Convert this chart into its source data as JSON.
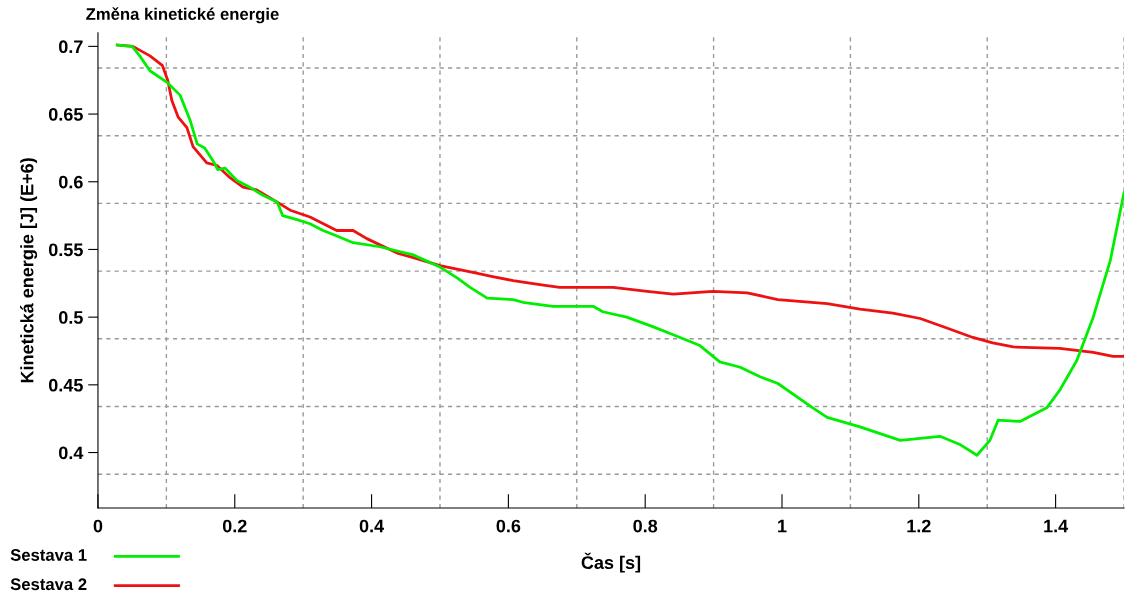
{
  "chart_data": {
    "type": "line",
    "title": "Změna kinetické energie",
    "xlabel": "Čas [s]",
    "ylabel": "Kinetická energie [J] (E+6)",
    "xlim": [
      0,
      1.5
    ],
    "ylim": [
      0.359,
      0.71
    ],
    "xticks": [
      0,
      {
        "value": 0.1,
        "label": null
      },
      0.2,
      {
        "value": 0.3,
        "label": null
      },
      0.4,
      {
        "value": 0.5,
        "label": null
      },
      0.6,
      {
        "value": 0.7,
        "label": null
      },
      0.8,
      {
        "value": 0.9,
        "label": null
      },
      1,
      {
        "value": 1.1,
        "label": null
      },
      1.2,
      {
        "value": 1.3,
        "label": null
      },
      1.4,
      {
        "value": 1.5,
        "label": null
      }
    ],
    "yticks": [
      {
        "value": 0.384,
        "label": null
      },
      0.4,
      {
        "value": 0.434,
        "label": null
      },
      0.45,
      {
        "value": 0.484,
        "label": null
      },
      0.5,
      {
        "value": 0.534,
        "label": null
      },
      0.55,
      {
        "value": 0.584,
        "label": null
      },
      0.6,
      {
        "value": 0.634,
        "label": null
      },
      0.65,
      {
        "value": 0.684,
        "label": null
      },
      0.7
    ],
    "grid": true,
    "legend": "bottom left",
    "line_style": "solid",
    "marker": "none",
    "series": [
      {
        "name": "Sestava 1",
        "color": "#00ee00",
        "x": [
          0.028,
          0.05,
          0.061,
          0.076,
          0.102,
          0.12,
          0.135,
          0.145,
          0.156,
          0.17,
          0.175,
          0.186,
          0.203,
          0.222,
          0.241,
          0.262,
          0.27,
          0.291,
          0.31,
          0.329,
          0.344,
          0.373,
          0.412,
          0.461,
          0.5,
          0.525,
          0.544,
          0.569,
          0.607,
          0.621,
          0.665,
          0.724,
          0.738,
          0.773,
          0.811,
          0.841,
          0.88,
          0.909,
          0.939,
          0.968,
          0.994,
          1.045,
          1.066,
          1.114,
          1.173,
          1.231,
          1.26,
          1.285,
          1.304,
          1.316,
          1.348,
          1.387,
          1.406,
          1.431,
          1.455,
          1.48,
          1.5
        ],
        "values": [
          0.701,
          0.7,
          0.693,
          0.682,
          0.673,
          0.664,
          0.645,
          0.628,
          0.625,
          0.614,
          0.609,
          0.61,
          0.601,
          0.596,
          0.59,
          0.585,
          0.575,
          0.572,
          0.569,
          0.564,
          0.561,
          0.555,
          0.552,
          0.546,
          0.537,
          0.529,
          0.522,
          0.514,
          0.513,
          0.511,
          0.508,
          0.508,
          0.504,
          0.5,
          0.493,
          0.487,
          0.479,
          0.467,
          0.463,
          0.456,
          0.451,
          0.433,
          0.426,
          0.419,
          0.409,
          0.412,
          0.406,
          0.398,
          0.409,
          0.424,
          0.423,
          0.433,
          0.446,
          0.468,
          0.5,
          0.542,
          0.592
        ]
      },
      {
        "name": "Sestava 2",
        "color": "#ee1111",
        "x": [
          0.029,
          0.051,
          0.076,
          0.094,
          0.102,
          0.108,
          0.117,
          0.13,
          0.139,
          0.159,
          0.174,
          0.193,
          0.212,
          0.232,
          0.262,
          0.281,
          0.31,
          0.349,
          0.373,
          0.393,
          0.439,
          0.461,
          0.5,
          0.548,
          0.577,
          0.607,
          0.646,
          0.675,
          0.753,
          0.803,
          0.841,
          0.899,
          0.949,
          0.994,
          1.066,
          1.114,
          1.162,
          1.202,
          1.241,
          1.279,
          1.308,
          1.338,
          1.406,
          1.455,
          1.484,
          1.5
        ],
        "values": [
          0.701,
          0.7,
          0.693,
          0.686,
          0.675,
          0.66,
          0.648,
          0.64,
          0.626,
          0.614,
          0.612,
          0.603,
          0.596,
          0.594,
          0.585,
          0.579,
          0.574,
          0.564,
          0.564,
          0.558,
          0.547,
          0.544,
          0.538,
          0.533,
          0.53,
          0.527,
          0.524,
          0.522,
          0.522,
          0.519,
          0.517,
          0.519,
          0.518,
          0.513,
          0.51,
          0.506,
          0.503,
          0.499,
          0.492,
          0.485,
          0.481,
          0.478,
          0.477,
          0.474,
          0.471,
          0.471
        ]
      }
    ]
  }
}
